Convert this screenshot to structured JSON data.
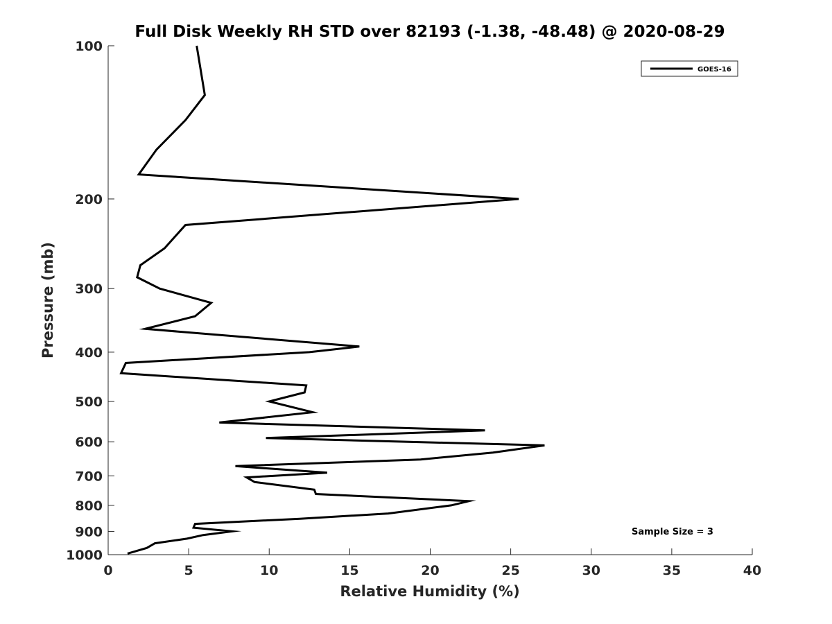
{
  "chart_data": {
    "type": "line",
    "title": "Full Disk Weekly RH STD over 82193 (-1.38, -48.48) @ 2020-08-29",
    "xlabel": "Relative Humidity (%)",
    "ylabel": "Pressure (mb)",
    "xlim": [
      0,
      40
    ],
    "ylim": [
      1000,
      100
    ],
    "yscale": "log",
    "xticks": [
      0,
      5,
      10,
      15,
      20,
      25,
      30,
      35,
      40
    ],
    "yticks": [
      100,
      200,
      300,
      400,
      500,
      600,
      700,
      800,
      900,
      1000
    ],
    "grid": false,
    "legend_position": "top-right",
    "annotation": "Sample Size = 3",
    "series": [
      {
        "name": "GOES-16",
        "color": "#000000",
        "points": [
          [
            5.5,
            100
          ],
          [
            6.0,
            125
          ],
          [
            4.8,
            140
          ],
          [
            3.0,
            160
          ],
          [
            1.9,
            179
          ],
          [
            25.5,
            200
          ],
          [
            4.8,
            225
          ],
          [
            3.5,
            250
          ],
          [
            2.0,
            270
          ],
          [
            1.8,
            285
          ],
          [
            3.2,
            300
          ],
          [
            6.4,
            320
          ],
          [
            5.4,
            340
          ],
          [
            2.3,
            360
          ],
          [
            15.6,
            390
          ],
          [
            12.5,
            400
          ],
          [
            1.1,
            420
          ],
          [
            0.8,
            440
          ],
          [
            12.3,
            465
          ],
          [
            12.2,
            480
          ],
          [
            10.0,
            500
          ],
          [
            12.7,
            525
          ],
          [
            6.9,
            550
          ],
          [
            23.4,
            570
          ],
          [
            9.8,
            590
          ],
          [
            27.1,
            610
          ],
          [
            23.9,
            630
          ],
          [
            19.4,
            650
          ],
          [
            7.9,
            670
          ],
          [
            13.6,
            690
          ],
          [
            8.6,
            705
          ],
          [
            9.1,
            720
          ],
          [
            12.8,
            745
          ],
          [
            12.9,
            760
          ],
          [
            22.4,
            785
          ],
          [
            21.3,
            800
          ],
          [
            17.4,
            830
          ],
          [
            11.9,
            850
          ],
          [
            5.4,
            870
          ],
          [
            5.3,
            885
          ],
          [
            7.7,
            900
          ],
          [
            5.9,
            915
          ],
          [
            4.9,
            930
          ],
          [
            2.9,
            950
          ],
          [
            2.4,
            970
          ],
          [
            1.2,
            995
          ]
        ]
      }
    ]
  }
}
